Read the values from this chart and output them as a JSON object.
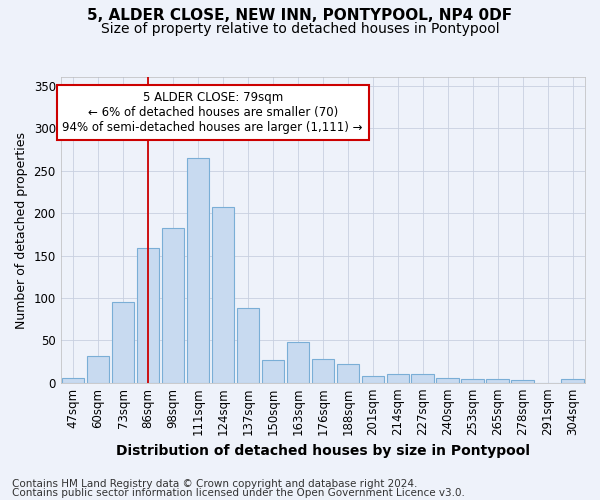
{
  "title1": "5, ALDER CLOSE, NEW INN, PONTYPOOL, NP4 0DF",
  "title2": "Size of property relative to detached houses in Pontypool",
  "xlabel": "Distribution of detached houses by size in Pontypool",
  "ylabel": "Number of detached properties",
  "categories": [
    "47sqm",
    "60sqm",
    "73sqm",
    "86sqm",
    "98sqm",
    "111sqm",
    "124sqm",
    "137sqm",
    "150sqm",
    "163sqm",
    "176sqm",
    "188sqm",
    "201sqm",
    "214sqm",
    "227sqm",
    "240sqm",
    "253sqm",
    "265sqm",
    "278sqm",
    "291sqm",
    "304sqm"
  ],
  "values": [
    6,
    32,
    95,
    159,
    183,
    265,
    207,
    88,
    27,
    48,
    28,
    22,
    8,
    10,
    10,
    5,
    4,
    4,
    3,
    0,
    4
  ],
  "bar_color": "#c8daf0",
  "bar_edge_color": "#7aaed6",
  "vline_pos": 3.0,
  "vline_color": "#cc0000",
  "annotation_text": "5 ALDER CLOSE: 79sqm\n← 6% of detached houses are smaller (70)\n94% of semi-detached houses are larger (1,111) →",
  "annotation_box_facecolor": "#ffffff",
  "annotation_box_edgecolor": "#cc0000",
  "ylim": [
    0,
    360
  ],
  "yticks": [
    0,
    50,
    100,
    150,
    200,
    250,
    300,
    350
  ],
  "footer1": "Contains HM Land Registry data © Crown copyright and database right 2024.",
  "footer2": "Contains public sector information licensed under the Open Government Licence v3.0.",
  "bg_color": "#eef2fa",
  "plot_bg_color": "#eef2fa",
  "title1_fontsize": 11,
  "title2_fontsize": 10,
  "xlabel_fontsize": 10,
  "ylabel_fontsize": 9,
  "tick_fontsize": 8.5,
  "annot_fontsize": 8.5,
  "footer_fontsize": 7.5
}
